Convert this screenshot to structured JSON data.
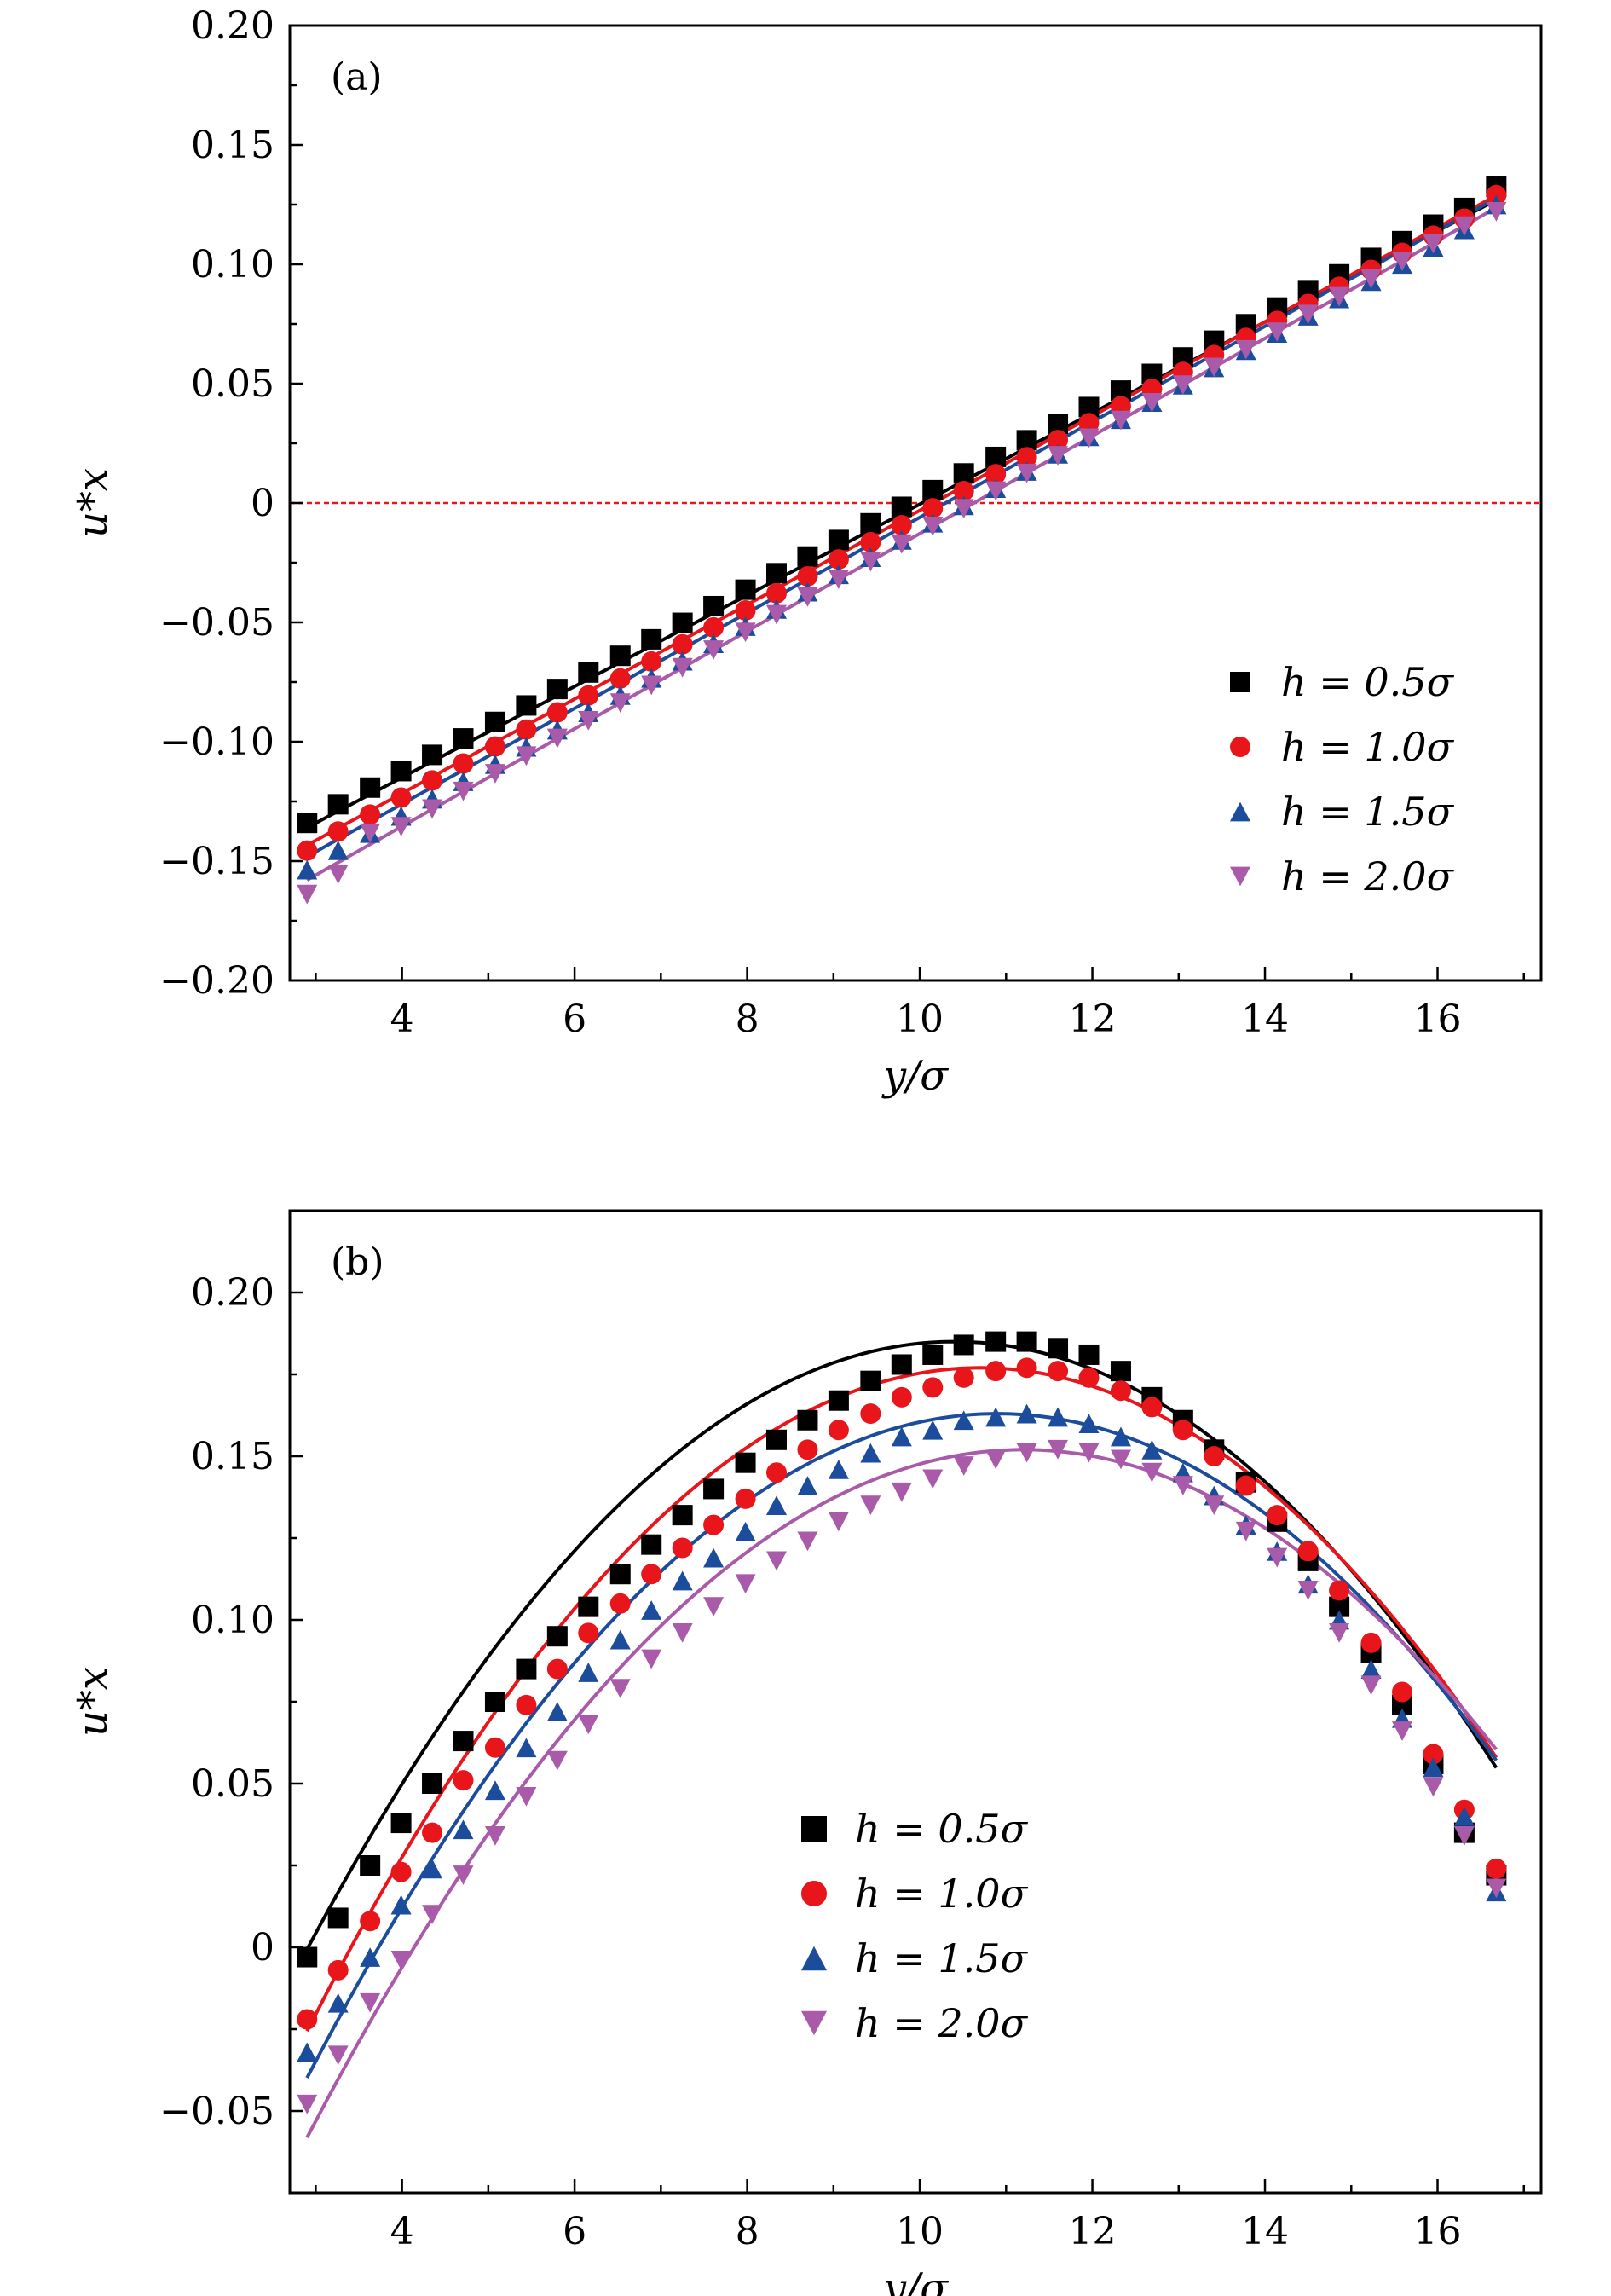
{
  "chart_data": [
    {
      "type": "scatter",
      "panel_label": "(a)",
      "xlabel": "y/σ",
      "ylabel": "u*x",
      "xlim": [
        2.7,
        17.2
      ],
      "ylim": [
        -0.2,
        0.2
      ],
      "xticks": [
        4,
        6,
        8,
        10,
        12,
        14,
        16
      ],
      "yticks": [
        -0.2,
        -0.15,
        -0.1,
        -0.05,
        0,
        0.05,
        0.1,
        0.15,
        0.2
      ],
      "ytick_labels": [
        "−0.20",
        "−0.15",
        "−0.10",
        "−0.05",
        "0",
        "0.05",
        "0.10",
        "0.15",
        "0.20"
      ],
      "reference_line": {
        "y": 0,
        "color": "#e8151b",
        "style": "dashed"
      },
      "legend_position": "bottom-right",
      "grid": false,
      "x": [
        2.9,
        3.26,
        3.63,
        3.99,
        4.35,
        4.71,
        5.08,
        5.44,
        5.8,
        6.16,
        6.53,
        6.89,
        7.25,
        7.61,
        7.98,
        8.34,
        8.7,
        9.06,
        9.43,
        9.79,
        10.15,
        10.51,
        10.88,
        11.24,
        11.6,
        11.96,
        12.33,
        12.69,
        13.05,
        13.41,
        13.78,
        14.14,
        14.5,
        14.86,
        15.23,
        15.59,
        15.95,
        16.31,
        16.68
      ],
      "series": [
        {
          "name": "h=0.5σ",
          "color": "#000000",
          "marker": "square",
          "fit": {
            "m": 0.01908,
            "c": -0.1913
          },
          "values": [
            -0.134,
            -0.1262,
            -0.1192,
            -0.1123,
            -0.1055,
            -0.0986,
            -0.0917,
            -0.0848,
            -0.0779,
            -0.071,
            -0.064,
            -0.0571,
            -0.0502,
            -0.0432,
            -0.0363,
            -0.0294,
            -0.0224,
            -0.0155,
            -0.0085,
            -0.0016,
            0.0054,
            0.0124,
            0.0193,
            0.0263,
            0.0332,
            0.0402,
            0.0471,
            0.0541,
            0.061,
            0.068,
            0.0749,
            0.0819,
            0.0888,
            0.0958,
            0.1027,
            0.1097,
            0.1166,
            0.1236,
            0.1325
          ]
        },
        {
          "name": "h=1.0σ",
          "color": "#e8151b",
          "marker": "circle",
          "fit": {
            "m": 0.01975,
            "c": -0.2006
          },
          "values": [
            -0.1456,
            -0.1376,
            -0.1305,
            -0.1234,
            -0.1162,
            -0.1091,
            -0.102,
            -0.0949,
            -0.0877,
            -0.0806,
            -0.0735,
            -0.0664,
            -0.0592,
            -0.0521,
            -0.045,
            -0.0378,
            -0.0307,
            -0.0236,
            -0.0164,
            -0.0093,
            -0.0022,
            0.005,
            0.0121,
            0.0192,
            0.0264,
            0.0335,
            0.0406,
            0.0478,
            0.0549,
            0.062,
            0.0692,
            0.0763,
            0.0834,
            0.0906,
            0.0977,
            0.1048,
            0.112,
            0.1191,
            0.129
          ]
        },
        {
          "name": "h=1.5σ",
          "color": "#1c4c9c",
          "marker": "triangle-up",
          "fit": {
            "m": 0.02001,
            "c": -0.2061
          },
          "values": [
            -0.1536,
            -0.1455,
            -0.1383,
            -0.1311,
            -0.1239,
            -0.1166,
            -0.1094,
            -0.1022,
            -0.095,
            -0.0877,
            -0.0805,
            -0.0733,
            -0.0661,
            -0.0588,
            -0.0516,
            -0.0444,
            -0.0372,
            -0.0299,
            -0.0227,
            -0.0155,
            -0.0083,
            -0.001,
            0.0062,
            0.0134,
            0.0206,
            0.0279,
            0.0351,
            0.0423,
            0.0495,
            0.0568,
            0.064,
            0.0712,
            0.0784,
            0.0857,
            0.0929,
            0.1001,
            0.1073,
            0.1146,
            0.125
          ]
        },
        {
          "name": "h=2.0σ",
          "color": "#a95aa8",
          "marker": "triangle-down",
          "fit": {
            "m": 0.02044,
            "c": -0.2172
          },
          "values": [
            -0.164,
            -0.1555,
            -0.1383,
            -0.1356,
            -0.1282,
            -0.1208,
            -0.1134,
            -0.106,
            -0.0986,
            -0.0912,
            -0.0838,
            -0.0764,
            -0.069,
            -0.0616,
            -0.0542,
            -0.0468,
            -0.0394,
            -0.032,
            -0.0246,
            -0.0172,
            -0.0098,
            -0.0024,
            0.005,
            0.0124,
            0.0198,
            0.0272,
            0.0346,
            0.042,
            0.0494,
            0.0568,
            0.0642,
            0.0716,
            0.079,
            0.0864,
            0.0938,
            0.1012,
            0.1086,
            0.116,
            0.122
          ]
        }
      ]
    },
    {
      "type": "scatter",
      "panel_label": "(b)",
      "xlabel": "y/σ",
      "ylabel": "u*x",
      "xlim": [
        2.7,
        17.2
      ],
      "ylim": [
        -0.075,
        0.225
      ],
      "xticks": [
        4,
        6,
        8,
        10,
        12,
        14,
        16
      ],
      "yticks": [
        -0.05,
        0,
        0.05,
        0.1,
        0.15,
        0.2
      ],
      "ytick_labels": [
        "−0.05",
        "0",
        "0.05",
        "0.10",
        "0.15",
        "0.20"
      ],
      "legend_position": "bottom-center",
      "grid": false,
      "x": [
        2.9,
        3.26,
        3.63,
        3.99,
        4.35,
        4.71,
        5.08,
        5.44,
        5.8,
        6.16,
        6.53,
        6.89,
        7.25,
        7.61,
        7.98,
        8.34,
        8.7,
        9.06,
        9.43,
        9.79,
        10.15,
        10.51,
        10.88,
        11.24,
        11.6,
        11.96,
        12.33,
        12.69,
        13.05,
        13.41,
        13.78,
        14.14,
        14.5,
        14.86,
        15.23,
        15.59,
        15.95,
        16.31,
        16.68
      ],
      "series": [
        {
          "name": "h=0.5σ",
          "color": "#000000",
          "marker": "square",
          "fit": {
            "peak_x": 10.4,
            "peak_y": 0.185,
            "a": 0.0033
          },
          "values": [
            -0.003,
            0.009,
            0.025,
            0.038,
            0.05,
            0.063,
            0.075,
            0.085,
            0.095,
            0.104,
            0.114,
            0.123,
            0.132,
            0.14,
            0.148,
            0.155,
            0.161,
            0.167,
            0.173,
            0.178,
            0.181,
            0.184,
            0.185,
            0.185,
            0.183,
            0.181,
            0.176,
            0.168,
            0.161,
            0.152,
            0.142,
            0.13,
            0.118,
            0.104,
            0.09,
            0.074,
            0.056,
            0.035,
            0.022
          ]
        },
        {
          "name": "h=1.0σ",
          "color": "#e8151b",
          "marker": "circle",
          "fit": {
            "peak_x": 10.7,
            "peak_y": 0.177,
            "a": 0.00333
          },
          "values": [
            -0.022,
            -0.007,
            0.008,
            0.023,
            0.035,
            0.051,
            0.061,
            0.074,
            0.085,
            0.096,
            0.105,
            0.114,
            0.122,
            0.129,
            0.137,
            0.145,
            0.152,
            0.158,
            0.163,
            0.168,
            0.171,
            0.174,
            0.176,
            0.177,
            0.176,
            0.174,
            0.17,
            0.165,
            0.158,
            0.15,
            0.141,
            0.132,
            0.121,
            0.109,
            0.093,
            0.078,
            0.059,
            0.042,
            0.024
          ]
        },
        {
          "name": "h=1.5σ",
          "color": "#1c4c9c",
          "marker": "triangle-up",
          "fit": {
            "peak_x": 10.9,
            "peak_y": 0.163,
            "a": 0.00317
          },
          "values": [
            -0.032,
            -0.017,
            -0.003,
            0.013,
            0.024,
            0.036,
            0.048,
            0.061,
            0.072,
            0.084,
            0.094,
            0.103,
            0.112,
            0.119,
            0.127,
            0.135,
            0.141,
            0.146,
            0.151,
            0.156,
            0.158,
            0.161,
            0.162,
            0.163,
            0.162,
            0.16,
            0.156,
            0.152,
            0.145,
            0.138,
            0.129,
            0.121,
            0.111,
            0.1,
            0.085,
            0.07,
            0.055,
            0.04,
            0.017
          ]
        },
        {
          "name": "h=2.0σ",
          "color": "#a95aa8",
          "marker": "triangle-down",
          "fit": {
            "peak_x": 11.2,
            "peak_y": 0.152,
            "a": 0.00305
          },
          "values": [
            -0.048,
            -0.033,
            -0.017,
            -0.004,
            0.01,
            0.022,
            0.034,
            0.046,
            0.057,
            0.068,
            0.079,
            0.088,
            0.096,
            0.104,
            0.111,
            0.118,
            0.124,
            0.13,
            0.135,
            0.139,
            0.143,
            0.147,
            0.149,
            0.151,
            0.152,
            0.151,
            0.149,
            0.145,
            0.141,
            0.135,
            0.127,
            0.119,
            0.109,
            0.096,
            0.08,
            0.066,
            0.049,
            0.034,
            0.018
          ]
        }
      ]
    }
  ]
}
